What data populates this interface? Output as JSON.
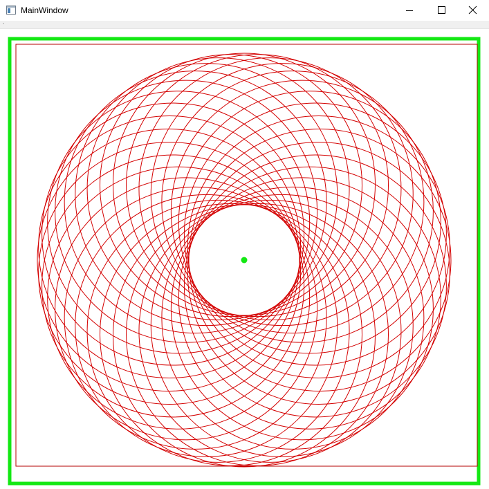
{
  "window": {
    "title": "MainWindow"
  },
  "titlebar": {
    "icon": "window-app-icon",
    "controls": [
      {
        "name": "minimize",
        "icon": "minimize-icon"
      },
      {
        "name": "maximize",
        "icon": "maximize-icon"
      },
      {
        "name": "close",
        "icon": "close-icon"
      }
    ]
  },
  "drawing": {
    "type": "spirograph",
    "loop_count": 36,
    "stroke_color": "#d40000",
    "frame_color": "#14e814",
    "inner_border_color": "#b40000",
    "center_dot_color": "#14e814"
  }
}
